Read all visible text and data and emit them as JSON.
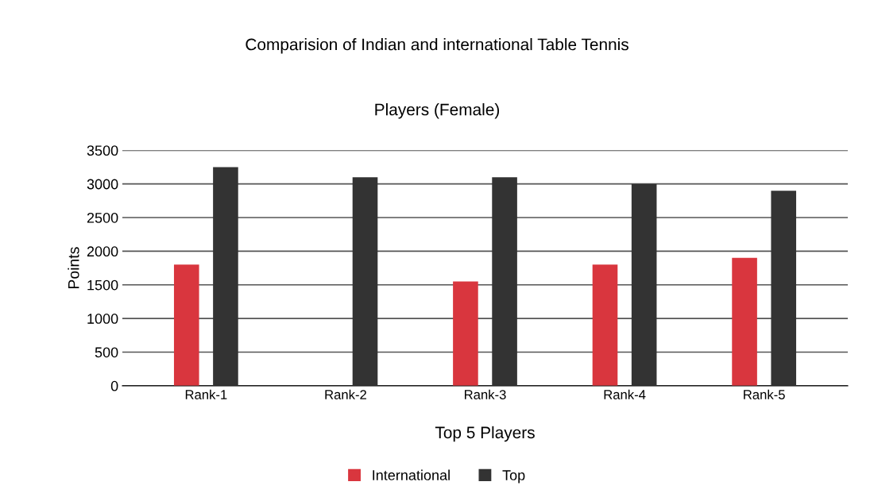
{
  "chart_data": {
    "type": "bar",
    "title": "Comparision of Indian and international Table Tennis",
    "subtitle": "Players (Female)",
    "xlabel": "Top 5 Players",
    "ylabel": "Points",
    "categories": [
      "Rank-1",
      "Rank-2",
      "Rank-3",
      "Rank-4",
      "Rank-5"
    ],
    "series": [
      {
        "name": "International",
        "color": "#d9363e",
        "values": [
          1800,
          0,
          1550,
          1800,
          1900
        ]
      },
      {
        "name": "Top",
        "color": "#333333",
        "values": [
          3250,
          3100,
          3100,
          3000,
          2900
        ]
      }
    ],
    "ylim": [
      0,
      3500
    ],
    "yticks": [
      0,
      500,
      1000,
      1500,
      2000,
      2500,
      3000,
      3500
    ],
    "grid": "y",
    "legend": "bottom"
  }
}
